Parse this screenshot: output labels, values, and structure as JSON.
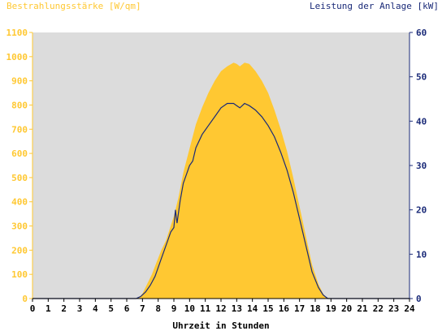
{
  "chart_data": {
    "type": "area",
    "title_left": "Bestrahlungsstärke [W/qm]",
    "title_right": "Leistung der Anlage [kW]",
    "xlabel": "Uhrzeit in Stunden",
    "xlim": [
      0,
      24
    ],
    "x_ticks": [
      "0",
      "1",
      "2",
      "3",
      "4",
      "5",
      "6",
      "7",
      "8",
      "9",
      "10",
      "11",
      "12",
      "13",
      "14",
      "15",
      "16",
      "17",
      "18",
      "19",
      "20",
      "21",
      "22",
      "23",
      "24"
    ],
    "y_left_lim": [
      0,
      1100
    ],
    "y_left_ticks": [
      "0",
      "100",
      "200",
      "300",
      "400",
      "500",
      "600",
      "700",
      "800",
      "900",
      "1000",
      "1100"
    ],
    "y_right_lim": [
      0,
      60
    ],
    "y_right_ticks": [
      "0",
      "10",
      "20",
      "30",
      "40",
      "50",
      "60"
    ],
    "grid": false,
    "colors": {
      "irradiance": "#ffc832",
      "power": "#1a2a78",
      "plot_bg": "#dcdcdc"
    },
    "series": [
      {
        "name": "Bestrahlungsstärke [W/qm]",
        "axis": "left",
        "type": "area",
        "x": [
          0,
          6.5,
          6.8,
          7.0,
          7.3,
          7.6,
          7.9,
          8.2,
          8.5,
          8.8,
          9.0,
          9.3,
          9.6,
          10.0,
          10.4,
          10.8,
          11.2,
          11.6,
          12.0,
          12.4,
          12.8,
          13.0,
          13.2,
          13.5,
          13.8,
          14.2,
          14.6,
          15.0,
          15.4,
          15.8,
          16.2,
          16.6,
          17.0,
          17.4,
          17.8,
          18.2,
          18.5,
          18.7,
          19.0,
          24
        ],
        "values": [
          0,
          0,
          5,
          20,
          60,
          100,
          150,
          200,
          240,
          300,
          340,
          420,
          520,
          620,
          720,
          790,
          850,
          900,
          940,
          960,
          975,
          970,
          960,
          975,
          970,
          940,
          900,
          850,
          780,
          700,
          610,
          500,
          380,
          260,
          140,
          60,
          20,
          5,
          0,
          0
        ]
      },
      {
        "name": "Leistung der Anlage [kW]",
        "axis": "right",
        "type": "line",
        "x": [
          0,
          6.6,
          6.9,
          7.2,
          7.5,
          7.8,
          8.0,
          8.2,
          8.4,
          8.6,
          8.8,
          9.0,
          9.1,
          9.2,
          9.4,
          9.6,
          9.8,
          10.0,
          10.2,
          10.4,
          10.8,
          11.2,
          11.6,
          12.0,
          12.4,
          12.8,
          13.0,
          13.2,
          13.5,
          13.8,
          14.2,
          14.6,
          15.0,
          15.4,
          15.8,
          16.2,
          16.6,
          17.0,
          17.4,
          17.8,
          18.2,
          18.5,
          18.8,
          24
        ],
        "values": [
          0,
          0,
          0.5,
          1.5,
          3,
          5,
          7,
          9,
          11,
          13,
          15,
          16,
          20,
          17,
          22,
          26,
          28,
          30,
          31,
          34,
          37,
          39,
          41,
          43,
          44,
          44,
          43.5,
          43,
          44,
          43.5,
          42.5,
          41,
          39,
          36.5,
          33,
          29,
          24,
          18,
          12,
          6,
          2.5,
          0.8,
          0,
          0
        ]
      }
    ]
  }
}
